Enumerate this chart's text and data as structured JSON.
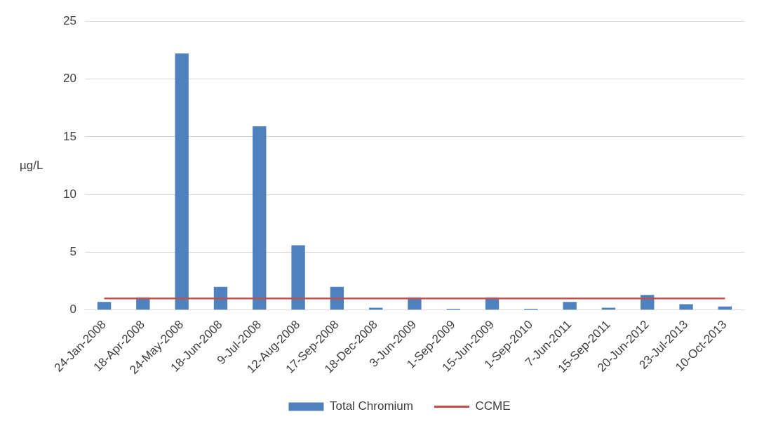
{
  "chart_data": {
    "type": "bar",
    "ylabel": "µg/L",
    "categories": [
      "24-Jan-2008",
      "18-Apr-2008",
      "24-May-2008",
      "18-Jun-2008",
      "9-Jul-2008",
      "12-Aug-2008",
      "17-Sep-2008",
      "18-Dec-2008",
      "3-Jun-2009",
      "1-Sep-2009",
      "15-Jun-2009",
      "1-Sep-2010",
      "7-Jun-2011",
      "15-Sep-2011",
      "20-Jun-2012",
      "23-Jul-2013",
      "10-Oct-2013"
    ],
    "series": [
      {
        "name": "Total Chromium",
        "color": "#4f81bd",
        "values": [
          0.7,
          1.1,
          22.2,
          2.0,
          15.9,
          5.6,
          2.0,
          0.2,
          1.1,
          0.1,
          1.1,
          0.1,
          0.7,
          0.2,
          1.3,
          0.5,
          0.3
        ]
      },
      {
        "name": "CCME",
        "type": "line",
        "color": "#c0504d",
        "values": [
          1.0,
          1.0,
          1.0,
          1.0,
          1.0,
          1.0,
          1.0,
          1.0,
          1.0,
          1.0,
          1.0,
          1.0,
          1.0,
          1.0,
          1.0,
          1.0,
          1.0
        ]
      }
    ],
    "ylim": [
      0,
      25
    ],
    "yticks": [
      0,
      5,
      10,
      15,
      20,
      25
    ],
    "grid": "y",
    "legend": "bottom",
    "marker": "none"
  }
}
